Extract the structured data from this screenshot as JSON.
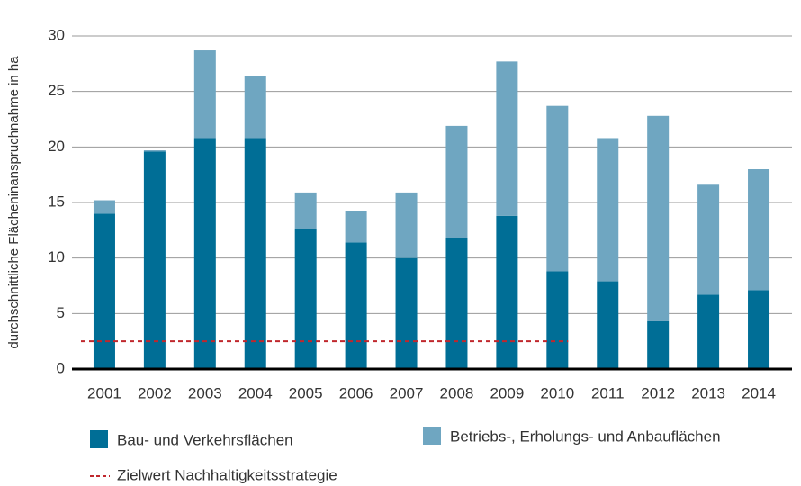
{
  "chart_data": {
    "type": "stacked_bar",
    "y_label": "durchschnittliche Flächeninanspruchnahme in ha",
    "categories": [
      "2001",
      "2002",
      "2003",
      "2004",
      "2005",
      "2006",
      "2007",
      "2008",
      "2009",
      "2010",
      "2011",
      "2012",
      "2013",
      "2014"
    ],
    "series": [
      {
        "name": "Bau- und Verkehrsflächen",
        "color": "#006e96",
        "values": [
          14.0,
          19.6,
          20.8,
          20.8,
          12.6,
          11.4,
          10.0,
          11.8,
          13.8,
          8.8,
          7.9,
          4.3,
          6.7,
          7.1
        ]
      },
      {
        "name": "Betriebs-, Erholungs- und Anbauflächen",
        "color": "#6fa6c1",
        "values": [
          1.2,
          0.1,
          7.9,
          5.6,
          3.3,
          2.8,
          5.9,
          10.1,
          13.9,
          14.9,
          12.9,
          18.5,
          9.9,
          10.9
        ]
      }
    ],
    "target": {
      "name": "Zielwert Nachhaltigkeitsstrategie",
      "value": 2.5,
      "color": "#c0272d"
    },
    "ylim": [
      0,
      30
    ],
    "yticks": [
      0,
      5,
      10,
      15,
      20,
      25,
      30
    ],
    "grid": true
  }
}
